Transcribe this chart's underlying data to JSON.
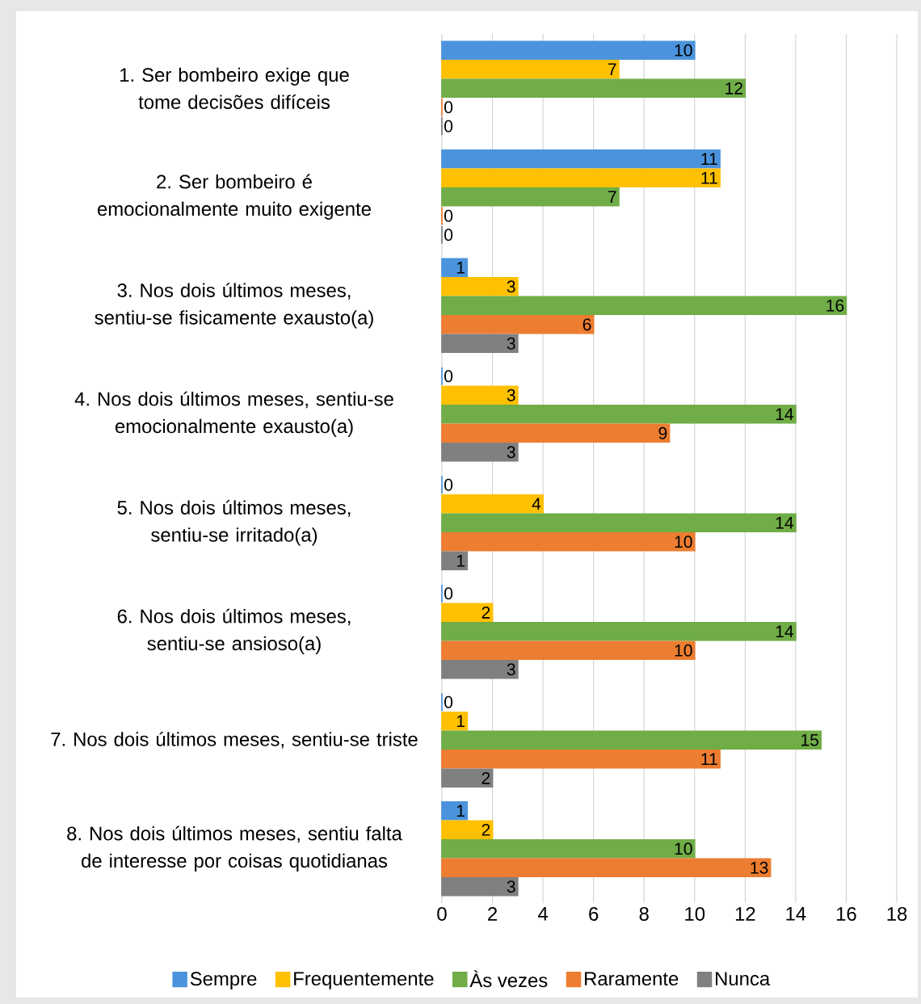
{
  "chart_data": {
    "type": "bar",
    "orientation": "horizontal",
    "categories": [
      "1. Ser bombeiro exige que tome decisões difíceis",
      "2. Ser bombeiro é emocionalmente muito exigente",
      "3. Nos dois últimos meses, sentiu-se fisicamente exausto(a)",
      "4. Nos dois últimos meses, sentiu-se emocionalmente exausto(a)",
      "5. Nos dois últimos meses, sentiu-se irritado(a)",
      "6. Nos dois últimos meses, sentiu-se ansioso(a)",
      "7. Nos dois últimos meses, sentiu-se triste",
      "8. Nos dois últimos meses, sentiu falta de interesse por coisas quotidianas"
    ],
    "series": [
      {
        "name": "Sempre",
        "color": "#4b94dd",
        "values": [
          10,
          11,
          1,
          0,
          0,
          0,
          0,
          1
        ]
      },
      {
        "name": "Frequentemente",
        "color": "#ffc000",
        "values": [
          7,
          11,
          3,
          3,
          4,
          2,
          1,
          2
        ]
      },
      {
        "name": "Às vezes",
        "color": "#70ad47",
        "values": [
          12,
          7,
          16,
          14,
          14,
          14,
          15,
          10
        ]
      },
      {
        "name": "Raramente",
        "color": "#ed7d31",
        "values": [
          0,
          0,
          6,
          9,
          10,
          10,
          11,
          13
        ]
      },
      {
        "name": "Nunca",
        "color": "#808080",
        "values": [
          0,
          0,
          3,
          3,
          1,
          3,
          2,
          3
        ]
      }
    ],
    "xlim": [
      0,
      18
    ],
    "xticks": [
      0,
      2,
      4,
      6,
      8,
      10,
      12,
      14,
      16,
      18
    ],
    "grid": "x",
    "legend": "bottom",
    "data_labels": true
  }
}
